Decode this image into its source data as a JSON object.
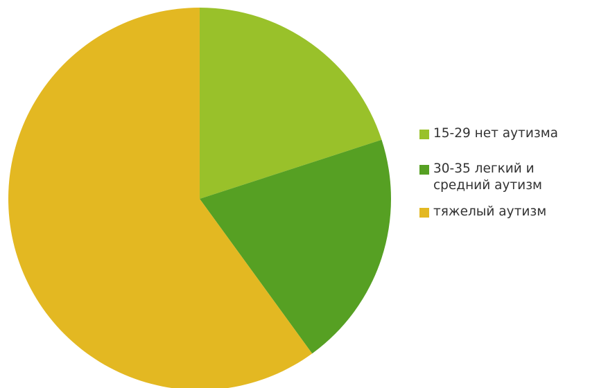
{
  "chart_data": {
    "type": "pie",
    "title": "",
    "categories": [
      "15-29 нет аутизма",
      "30-35 легкий и средний аутизм",
      "тяжелый аутизм"
    ],
    "values": [
      20,
      20,
      60
    ],
    "colors": [
      "#99c12a",
      "#56a023",
      "#e3b822"
    ],
    "start_angle_deg": 0,
    "direction": "clockwise",
    "legend_position": "right"
  },
  "legend": {
    "items": [
      {
        "label": "15-29 нет аутизма",
        "color": "#99c12a"
      },
      {
        "label": "30-35 легкий и средний аутизм",
        "color": "#56a023"
      },
      {
        "label": "тяжелый аутизм",
        "color": "#e3b822"
      }
    ]
  }
}
